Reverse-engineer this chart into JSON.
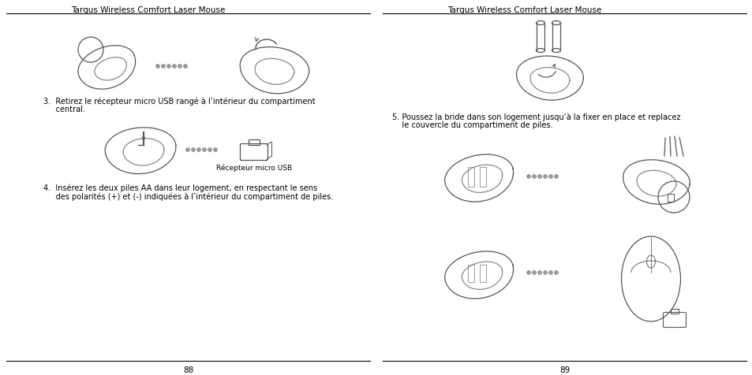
{
  "background_color": "#ffffff",
  "page_width": 9.54,
  "page_height": 4.77,
  "left_page": {
    "title": "Targus Wireless Comfort Laser Mouse",
    "page_number": "88",
    "step3_line1": "3.  Retirez le récepteur micro USB rangé à l’intérieur du compartiment",
    "step3_line2": "     central.",
    "step4_line1": "4.  Insérez les deux piles AA dans leur logement, en respectant le sens",
    "step4_line2": "     des polarités (+) et (-) indiquées à l’intérieur du compartiment de piles.",
    "caption": "Récepteur micro USB"
  },
  "right_page": {
    "title": "Targus Wireless Comfort Laser Mouse",
    "page_number": "89",
    "step5_line1": "5. Poussez la bride dans son logement jusqu’à la fixer en place et replacez",
    "step5_line2": "    le couvercle du compartiment de piles."
  },
  "divider_color": "#000000",
  "text_color": "#000000",
  "dot_color": "#999999",
  "title_fontsize": 7.5,
  "body_fontsize": 7.0,
  "caption_fontsize": 6.5,
  "pagenumber_fontsize": 7.5
}
